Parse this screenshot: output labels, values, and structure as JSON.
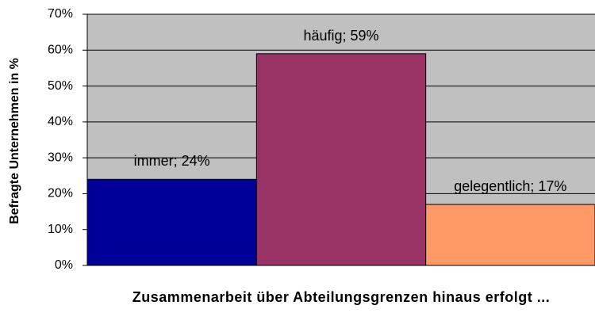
{
  "chart_data": {
    "type": "bar",
    "y_axis_label": "Befragte Unternehmen in %",
    "x_axis_label": "Zusammenarbeit über Abteilungsgrenzen hinaus erfolgt ...",
    "values": [
      24,
      59,
      17
    ],
    "value_labels": [
      "immer; 24%",
      "häufig; 59%",
      "gelegentlich; 17%"
    ],
    "colors": [
      "#000099",
      "#993366",
      "#FF9966"
    ],
    "ylim": [
      0,
      70
    ],
    "yticks": [
      {
        "value": 0,
        "label": "0%"
      },
      {
        "value": 10,
        "label": "10%"
      },
      {
        "value": 20,
        "label": "20%"
      },
      {
        "value": 30,
        "label": "30%"
      },
      {
        "value": 40,
        "label": "40%"
      },
      {
        "value": 50,
        "label": "50%"
      },
      {
        "value": 60,
        "label": "60%"
      },
      {
        "value": 70,
        "label": "70%"
      }
    ],
    "grid": true,
    "plot_background": "#C0C0C0"
  }
}
